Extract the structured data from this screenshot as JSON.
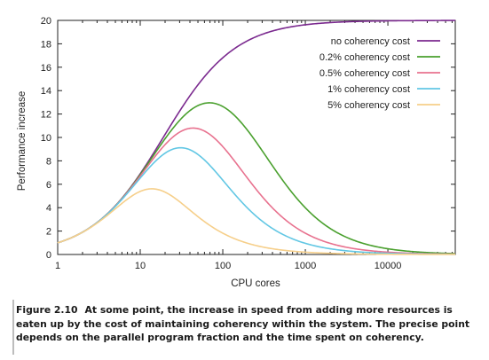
{
  "figure": {
    "number": "Figure 2.10",
    "caption": "At some point, the increase in speed from adding more resources is eaten up by the cost of maintaining coherency within the system. The precise point depends on the parallel program fraction and the time spent on coherency."
  },
  "chart_data": {
    "type": "line",
    "title": "",
    "xlabel": "CPU cores",
    "ylabel": "Performance increase",
    "xscale": "log",
    "xlim": [
      1,
      65536
    ],
    "ylim": [
      0,
      20
    ],
    "xticks": [
      1,
      10,
      100,
      1000,
      10000
    ],
    "xtick_labels": [
      "1",
      "10",
      "100",
      "1000",
      "10000"
    ],
    "yticks": [
      0,
      2,
      4,
      6,
      8,
      10,
      12,
      14,
      16,
      18,
      20
    ],
    "ytick_labels": [
      "0",
      "2",
      "4",
      "6",
      "8",
      "10",
      "12",
      "14",
      "16",
      "18",
      "20"
    ],
    "legend_position": "top-right",
    "grid": false,
    "model": {
      "parallel_fraction": 0.95
    },
    "series": [
      {
        "name": "no coherency cost",
        "coherency": 0,
        "color": "#7b2a8f"
      },
      {
        "name": "0.2% coherency cost",
        "coherency": 0.002,
        "color": "#4aa02e"
      },
      {
        "name": "0.5% coherency cost",
        "coherency": 0.005,
        "color": "#e8728f"
      },
      {
        "name": "1% coherency cost",
        "coherency": 0.01,
        "color": "#62c7e4"
      },
      {
        "name": "5% coherency cost",
        "coherency": 0.05,
        "color": "#f6cf8a"
      }
    ]
  }
}
